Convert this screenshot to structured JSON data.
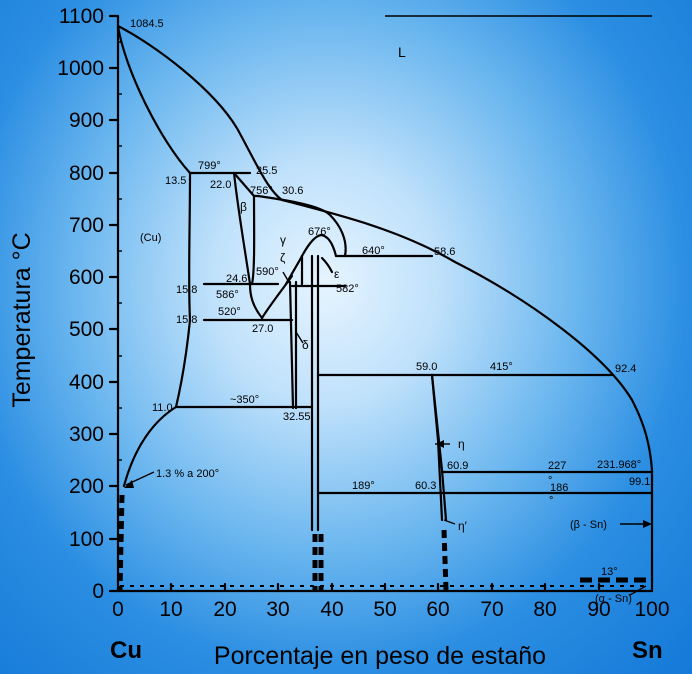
{
  "diagram": {
    "y_title": "Temperatura °C",
    "x_title": "Porcentaje en peso de estaño",
    "corner_left": "Cu",
    "corner_right": "Sn",
    "y_ticks": [
      "0",
      "100",
      "200",
      "300",
      "400",
      "500",
      "600",
      "700",
      "800",
      "900",
      "1000",
      "1100"
    ],
    "x_ticks": [
      "0",
      "10",
      "20",
      "30",
      "40",
      "50",
      "60",
      "70",
      "80",
      "90",
      "100"
    ],
    "region_labels": {
      "liquid": "L",
      "cu": "(Cu)",
      "beta": "β",
      "gamma": "γ",
      "zeta": "ζ",
      "epsilon": "ε",
      "delta": "δ",
      "eta": "η",
      "eta_prime": "η′",
      "beta_sn": "(β - Sn)",
      "alpha_sn": "(α - Sn)"
    },
    "point_labels": {
      "cu_melt": "1084.5",
      "t799": "799°",
      "c25_5": "25.5",
      "c13_5": "13.5",
      "c22_0": "22.0",
      "t756": "756°",
      "c30_6": "30.6",
      "t676": "676°",
      "t640": "640°",
      "c58_6": "58.6",
      "c24_6": "24.6",
      "t590": "590°",
      "t586": "586°",
      "c15_8a": "15.8",
      "t582": "582°",
      "t520": "520°",
      "c15_8b": "15.8",
      "c27_0": "27.0",
      "c59_0": "59.0",
      "t415": "415°",
      "c92_4": "92.4",
      "c11_0": "11.0",
      "t350": "~350°",
      "c32_55": "32.55",
      "solubility": "1.3 % a 200°",
      "c60_9": "60.9",
      "t227": "227",
      "t227_deg": "°",
      "t231": "231.968°",
      "t189": "189°",
      "c60_3": "60.3",
      "t186": "186",
      "t186_deg": "°",
      "c99_1": "99.1",
      "t13": "13°"
    }
  }
}
